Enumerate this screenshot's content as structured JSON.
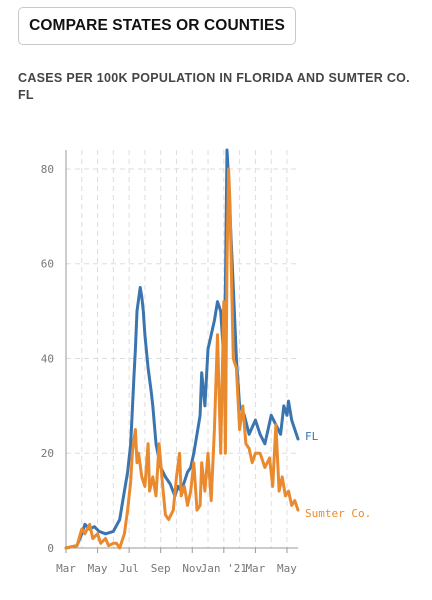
{
  "button": {
    "label": "COMPARE STATES OR COUNTIES"
  },
  "chart_data": {
    "type": "line",
    "title": "CASES PER 100K POPULATION IN FLORIDA AND SUMTER CO. FL",
    "xlabel": "",
    "ylabel": "",
    "ylim": [
      0,
      84
    ],
    "xlim": [
      0,
      14.7
    ],
    "yticks": [
      "0",
      "20",
      "40",
      "60",
      "80"
    ],
    "xticks": [
      {
        "label": "Mar",
        "x": 0
      },
      {
        "label": "May",
        "x": 2
      },
      {
        "label": "Jul",
        "x": 4
      },
      {
        "label": "Sep",
        "x": 6
      },
      {
        "label": "Nov",
        "x": 8
      },
      {
        "label": "Jan '21",
        "x": 10
      },
      {
        "label": "Mar",
        "x": 12
      },
      {
        "label": "May",
        "x": 14
      }
    ],
    "grid": true,
    "series": [
      {
        "name": "FL",
        "color": "#3a75b0",
        "x": [
          0,
          0.7,
          1,
          1.2,
          1.5,
          1.8,
          2.1,
          2.5,
          3,
          3.4,
          3.6,
          3.9,
          4.1,
          4.3,
          4.4,
          4.5,
          4.7,
          4.8,
          4.9,
          5.0,
          5.2,
          5.4,
          5.5,
          5.7,
          6,
          6.3,
          6.6,
          6.9,
          7.1,
          7.3,
          7.5,
          7.7,
          7.9,
          8.1,
          8.3,
          8.5,
          8.6,
          8.8,
          9.0,
          9.2,
          9.4,
          9.6,
          9.8,
          10.0,
          10.1,
          10.2,
          10.3,
          10.4,
          10.6,
          10.8,
          11.0,
          11.3,
          11.6,
          12.0,
          12.3,
          12.6,
          13.0,
          13.3,
          13.6,
          13.8,
          14.0,
          14.1,
          14.3,
          14.5,
          14.7
        ],
        "y": [
          0,
          0.5,
          3,
          5,
          4,
          4.5,
          3.5,
          3,
          3.5,
          6,
          10,
          16,
          22,
          36,
          42,
          50,
          55,
          53,
          50,
          45,
          38,
          33,
          30,
          22,
          17,
          15,
          13.5,
          11,
          13,
          12,
          14,
          16,
          17,
          20,
          24,
          28,
          37,
          30,
          42,
          45,
          48,
          52,
          50,
          40,
          55,
          84,
          78,
          70,
          55,
          40,
          30,
          28,
          24,
          27,
          24,
          22,
          28,
          26,
          24,
          30,
          28,
          31,
          27,
          25,
          23
        ]
      },
      {
        "name": "Sumter Co.",
        "color": "#ea8a2e",
        "x": [
          0,
          0.7,
          1,
          1.2,
          1.5,
          1.7,
          2.0,
          2.2,
          2.5,
          2.7,
          3.0,
          3.2,
          3.4,
          3.7,
          3.9,
          4.1,
          4.2,
          4.4,
          4.5,
          4.6,
          4.8,
          5.0,
          5.2,
          5.3,
          5.5,
          5.7,
          5.9,
          6.1,
          6.3,
          6.5,
          6.8,
          7.0,
          7.2,
          7.3,
          7.5,
          7.7,
          7.9,
          8.1,
          8.3,
          8.5,
          8.6,
          8.8,
          9.0,
          9.2,
          9.4,
          9.6,
          9.8,
          10.0,
          10.1,
          10.2,
          10.3,
          10.4,
          10.5,
          10.6,
          10.8,
          11.0,
          11.2,
          11.4,
          11.6,
          11.8,
          12.0,
          12.3,
          12.6,
          12.9,
          13.1,
          13.3,
          13.5,
          13.7,
          13.9,
          14.1,
          14.3,
          14.5,
          14.7
        ],
        "y": [
          0,
          0.5,
          4,
          3,
          5,
          2,
          3,
          1,
          2,
          0.5,
          1,
          1,
          0,
          3,
          8,
          14,
          20,
          25,
          18,
          20,
          15,
          13,
          22,
          12,
          15,
          11,
          22,
          14,
          7,
          6,
          8,
          15,
          20,
          11,
          13,
          9,
          12,
          18,
          8,
          9,
          18,
          12,
          20,
          10,
          25,
          45,
          20,
          52,
          20,
          60,
          80,
          72,
          55,
          40,
          38,
          25,
          30,
          22,
          21,
          18,
          20,
          20,
          17,
          19,
          13,
          26,
          12,
          15,
          11,
          12,
          9,
          10,
          8
        ]
      }
    ]
  }
}
